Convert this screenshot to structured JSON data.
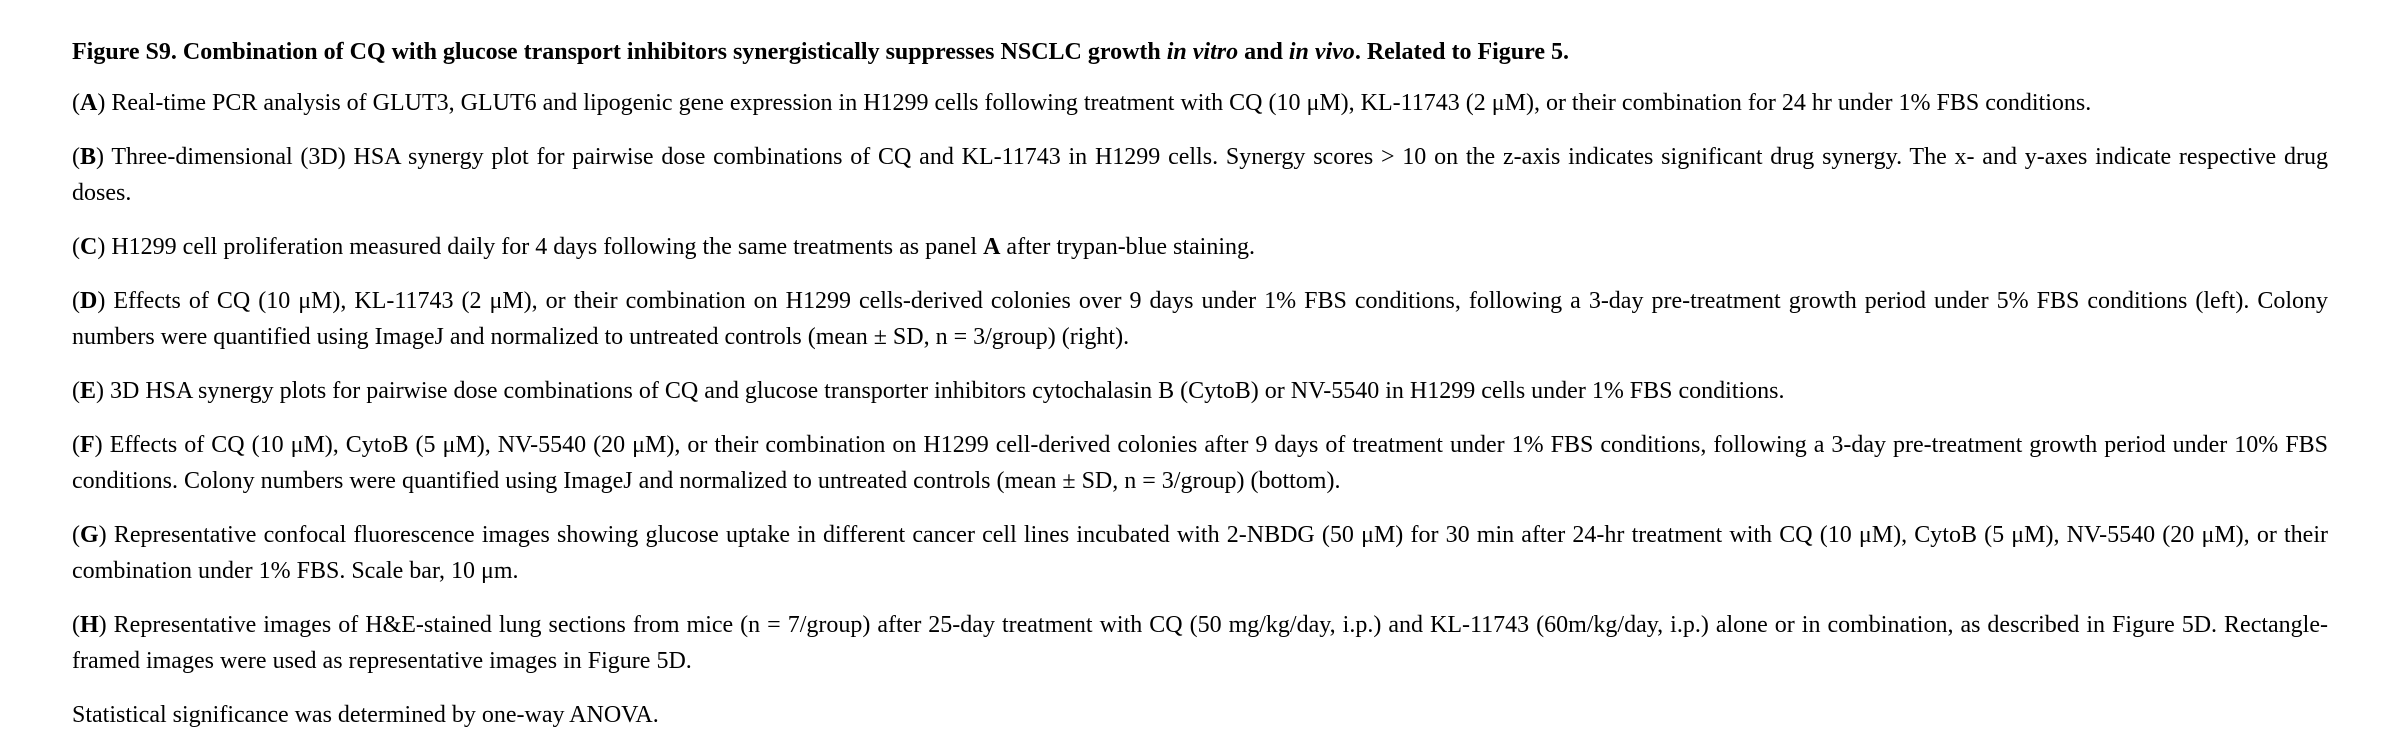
{
  "title": {
    "lead": "Figure S9. Combination of CQ with glucose transport inhibitors synergistically suppresses NSCLC growth ",
    "italic1": "in vitro",
    "mid": " and ",
    "italic2": "in vivo",
    "tail": ". Related to Figure 5."
  },
  "paragraphs": {
    "A": {
      "label": "A",
      "text": "Real-time PCR analysis of GLUT3, GLUT6 and lipogenic gene expression in H1299 cells following treatment with CQ (10 μM), KL-11743 (2 μM), or their combination for 24 hr under 1% FBS conditions."
    },
    "B": {
      "label": "B",
      "text": "Three-dimensional (3D) HSA synergy plot for pairwise dose combinations of CQ and KL-11743 in H1299 cells. Synergy scores > 10 on the z-axis indicates significant drug synergy. The x- and y-axes indicate respective drug doses."
    },
    "C": {
      "label": "C",
      "text_before": "H1299 cell proliferation measured daily for 4 days following the same treatments as panel ",
      "bold_ref": "A",
      "text_after": " after trypan-blue staining."
    },
    "D": {
      "label": "D",
      "text": "Effects of CQ (10 μM), KL-11743 (2 μM), or their combination on H1299 cells-derived colonies over 9 days under 1% FBS conditions, following a 3-day pre-treatment growth period under 5% FBS conditions (left). Colony numbers were quantified using ImageJ and normalized to untreated controls (mean ± SD, n = 3/group) (right)."
    },
    "E": {
      "label": "E",
      "text": "3D HSA synergy plots for pairwise dose combinations of CQ and glucose transporter inhibitors cytochalasin B (CytoB) or NV-5540 in H1299 cells under 1% FBS conditions."
    },
    "F": {
      "label": "F",
      "text": "Effects of CQ (10 μM), CytoB (5 μM), NV-5540 (20 μM), or their combination on H1299 cell-derived colonies after 9 days of treatment under 1% FBS conditions, following a 3-day pre-treatment growth period under 10% FBS conditions. Colony numbers were quantified using ImageJ and normalized to untreated controls (mean ± SD, n = 3/group) (bottom)."
    },
    "G": {
      "label": "G",
      "text": "Representative confocal fluorescence images showing glucose uptake in different cancer cell lines incubated with 2-NBDG (50 μM) for 30 min after 24-hr treatment with CQ (10 μM), CytoB (5 μM), NV-5540 (20 μM), or their combination under 1% FBS. Scale bar, 10 μm."
    },
    "H": {
      "label": "H",
      "text": "Representative images of H&E-stained lung sections from mice (n = 7/group) after 25-day treatment with CQ (50 mg/kg/day, i.p.) and KL-11743 (60m/kg/day, i.p.) alone or in combination, as described in Figure 5D. Rectangle-framed images were used as representative images in Figure 5D."
    }
  },
  "statistics": "Statistical significance was determined by one-way ANOVA."
}
